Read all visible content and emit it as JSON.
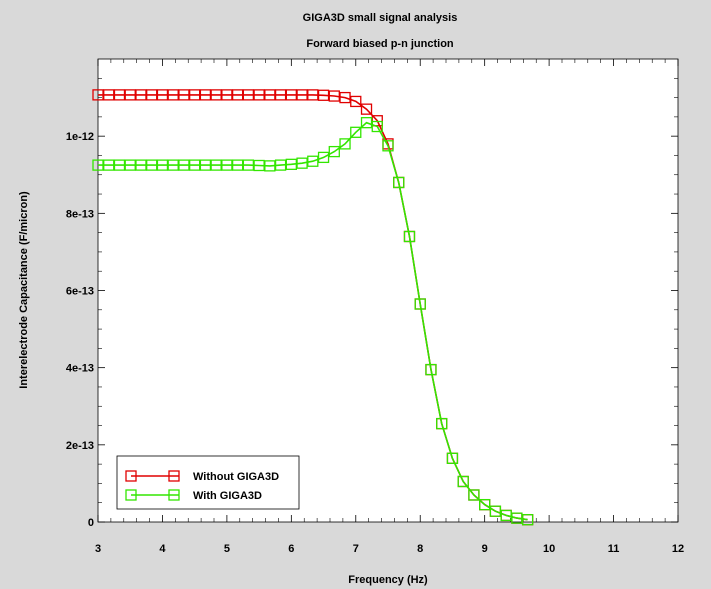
{
  "colors": {
    "background": "#d9d9d9",
    "plot_bg": "#ffffff",
    "series_red": "#e00000",
    "series_green": "#33e600"
  },
  "chart_data": {
    "type": "line",
    "title": "GIGA3D small signal analysis",
    "subtitle": "Forward biased p-n junction",
    "xlabel": "Frequency (Hz)",
    "ylabel": "Interelectrode Capacitance  (F/micron)",
    "xlim": [
      3,
      12
    ],
    "ylim": [
      0,
      1.2e-12
    ],
    "x_ticks": [
      3,
      4,
      5,
      6,
      7,
      8,
      9,
      10,
      11,
      12
    ],
    "x_tick_labels": [
      "3",
      "4",
      "5",
      "6",
      "7",
      "8",
      "9",
      "10",
      "11",
      "12"
    ],
    "y_ticks": [
      0,
      2e-13,
      4e-13,
      6e-13,
      8e-13,
      1e-12
    ],
    "y_tick_labels": [
      "0",
      "2e-13",
      "4e-13",
      "6e-13",
      "8e-13",
      "1e-12"
    ],
    "grid": false,
    "legend_position": "bottom-left",
    "marker": "square",
    "series": [
      {
        "name": "Without GIGA3D",
        "color": "#e00000",
        "x": [
          3.0,
          3.1667,
          3.3333,
          3.5,
          3.6667,
          3.8333,
          4.0,
          4.1667,
          4.3333,
          4.5,
          4.6667,
          4.8333,
          5.0,
          5.1667,
          5.3333,
          5.5,
          5.6667,
          5.8333,
          6.0,
          6.1667,
          6.3333,
          6.5,
          6.6667,
          6.8333,
          7.0,
          7.1667,
          7.3333,
          7.5,
          7.6667,
          7.8333,
          8.0,
          8.1667,
          8.3333,
          8.5,
          8.6667,
          8.8333,
          9.0,
          9.1667,
          9.3333,
          9.5,
          9.6667
        ],
        "y": [
          1.107e-12,
          1.107e-12,
          1.107e-12,
          1.107e-12,
          1.107e-12,
          1.107e-12,
          1.107e-12,
          1.107e-12,
          1.107e-12,
          1.107e-12,
          1.107e-12,
          1.107e-12,
          1.107e-12,
          1.107e-12,
          1.107e-12,
          1.107e-12,
          1.107e-12,
          1.107e-12,
          1.107e-12,
          1.107e-12,
          1.107e-12,
          1.106e-12,
          1.104e-12,
          1.1e-12,
          1.09e-12,
          1.07e-12,
          1.04e-12,
          9.8e-13,
          8.8e-13,
          7.4e-13,
          5.65e-13,
          3.95e-13,
          2.55e-13,
          1.65e-13,
          1.05e-13,
          7e-14,
          4.5e-14,
          2.8e-14,
          1.7e-14,
          1e-14,
          6e-15
        ]
      },
      {
        "name": "With GIGA3D",
        "color": "#33e600",
        "x": [
          3.0,
          3.1667,
          3.3333,
          3.5,
          3.6667,
          3.8333,
          4.0,
          4.1667,
          4.3333,
          4.5,
          4.6667,
          4.8333,
          5.0,
          5.1667,
          5.3333,
          5.5,
          5.6667,
          5.8333,
          6.0,
          6.1667,
          6.3333,
          6.5,
          6.6667,
          6.8333,
          7.0,
          7.1667,
          7.3333,
          7.5,
          7.6667,
          7.8333,
          8.0,
          8.1667,
          8.3333,
          8.5,
          8.6667,
          8.8333,
          9.0,
          9.1667,
          9.3333,
          9.5,
          9.6667
        ],
        "y": [
          9.25e-13,
          9.25e-13,
          9.25e-13,
          9.25e-13,
          9.25e-13,
          9.25e-13,
          9.25e-13,
          9.25e-13,
          9.25e-13,
          9.25e-13,
          9.25e-13,
          9.25e-13,
          9.25e-13,
          9.25e-13,
          9.25e-13,
          9.24e-13,
          9.23e-13,
          9.25e-13,
          9.27e-13,
          9.3e-13,
          9.35e-13,
          9.45e-13,
          9.6e-13,
          9.8e-13,
          1.01e-12,
          1.035e-12,
          1.025e-12,
          9.75e-13,
          8.8e-13,
          7.4e-13,
          5.65e-13,
          3.95e-13,
          2.55e-13,
          1.65e-13,
          1.05e-13,
          7e-14,
          4.5e-14,
          2.8e-14,
          1.7e-14,
          1e-14,
          6e-15
        ]
      }
    ]
  }
}
